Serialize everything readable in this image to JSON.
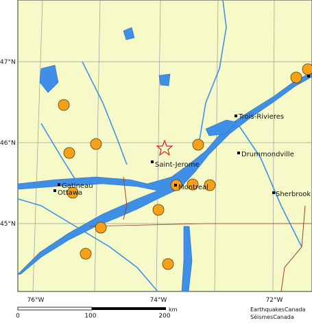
{
  "map": {
    "lon_labels": [
      "76°W",
      "74°W",
      "72°W"
    ],
    "lat_labels": [
      "47°N",
      "46°N",
      "45°N"
    ],
    "cities": [
      "Trois-Rivieres",
      "Drummondville",
      "Saint-Jerome",
      "Montreal",
      "Gatineau",
      "Ottawa",
      "Sherbrook"
    ],
    "scale": {
      "labels": [
        "0",
        "100",
        "200"
      ],
      "unit": "km"
    },
    "credits": [
      "EarthquakesCanada",
      "SéismesCanada"
    ]
  }
}
